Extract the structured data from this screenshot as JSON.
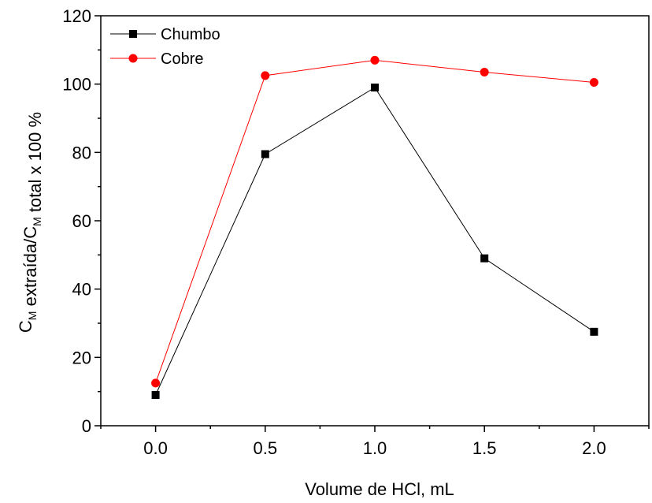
{
  "chart_data": {
    "type": "line",
    "xlabel": "Volume de HCl, mL",
    "ylabel": {
      "parts": [
        {
          "text": "C",
          "sub": false
        },
        {
          "text": "M",
          "sub": true
        },
        {
          "text": " extraída/C",
          "sub": false
        },
        {
          "text": "M",
          "sub": true
        },
        {
          "text": " total x 100 %",
          "sub": false
        }
      ]
    },
    "xlim": [
      -0.25,
      2.25
    ],
    "ylim": [
      0,
      120
    ],
    "xticks": [
      "0.0",
      "0.5",
      "1.0",
      "1.5",
      "2.0"
    ],
    "xtick_values": [
      0,
      0.5,
      1.0,
      1.5,
      2.0
    ],
    "yticks": [
      "0",
      "20",
      "40",
      "60",
      "80",
      "100",
      "120"
    ],
    "ytick_values": [
      0,
      20,
      40,
      60,
      80,
      100,
      120
    ],
    "grid": false,
    "legend_position": "top-left",
    "series": [
      {
        "name": "Chumbo",
        "color": "#000000",
        "marker": "square",
        "x": [
          0.0,
          0.5,
          1.0,
          1.5,
          2.0
        ],
        "y": [
          9,
          79.5,
          99,
          49,
          27.5
        ]
      },
      {
        "name": "Cobre",
        "color": "#ff0000",
        "marker": "circle",
        "x": [
          0.0,
          0.5,
          1.0,
          1.5,
          2.0
        ],
        "y": [
          12.5,
          102.5,
          107,
          103.5,
          100.5
        ]
      }
    ]
  }
}
